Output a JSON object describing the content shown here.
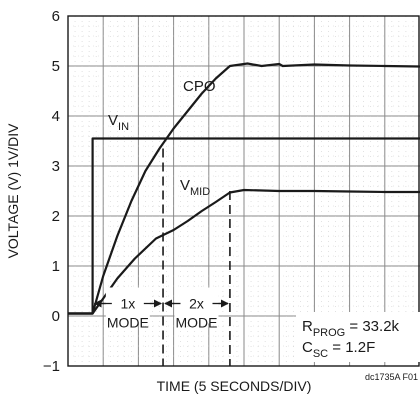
{
  "chart_data": {
    "type": "line",
    "title": "",
    "xlabel": "TIME (5 SECONDS/DIV)",
    "ylabel": "VOLTAGE (V) 1V/DIV",
    "xlim": [
      0,
      10
    ],
    "ylim": [
      -1,
      6
    ],
    "yticks": [
      "6",
      "5",
      "4",
      "3",
      "2",
      "1",
      "0",
      "−1"
    ],
    "grid": true,
    "series": [
      {
        "name": "CPO",
        "color": "#1a1a1a",
        "x": [
          0,
          0.3,
          0.7,
          1.0,
          1.4,
          1.8,
          2.2,
          2.6,
          3.0,
          3.4,
          3.8,
          4.2,
          4.6,
          5.1,
          5.5,
          6.0,
          6.1,
          7.0,
          8.0,
          9.0,
          10.0
        ],
        "y": [
          0.05,
          0.05,
          0.05,
          0.8,
          1.6,
          2.3,
          2.9,
          3.35,
          3.75,
          4.1,
          4.45,
          4.75,
          5.0,
          5.05,
          5.0,
          5.04,
          5.0,
          5.03,
          5.01,
          5.0,
          4.99
        ]
      },
      {
        "name": "V",
        "name_subscript": "IN",
        "color": "#1a1a1a",
        "x": [
          0,
          0.7,
          0.7,
          1.0,
          3.0,
          5.0,
          7.0,
          10.0
        ],
        "y": [
          0.05,
          0.05,
          3.55,
          3.55,
          3.55,
          3.55,
          3.55,
          3.55
        ]
      },
      {
        "name": "V",
        "name_subscript": "MID",
        "color": "#1a1a1a",
        "x": [
          0,
          0.7,
          1.0,
          1.4,
          1.9,
          2.5,
          3.0,
          3.4,
          3.8,
          4.2,
          4.6,
          5.0,
          6.0,
          7.0,
          8.0,
          9.0,
          10.0
        ],
        "y": [
          0.05,
          0.05,
          0.35,
          0.75,
          1.15,
          1.55,
          1.72,
          1.9,
          2.1,
          2.28,
          2.47,
          2.52,
          2.5,
          2.5,
          2.49,
          2.48,
          2.48
        ]
      }
    ],
    "markers": [
      {
        "x": 2.7,
        "label": "1x",
        "sublabel": "MODE",
        "span_from": 0.7
      },
      {
        "x": 4.6,
        "label": "2x",
        "sublabel": "MODE",
        "span_from": 2.7
      }
    ],
    "annotations": {
      "rprog": {
        "main": "R",
        "sub": "PROG",
        "rest": " = 33.2k"
      },
      "csc": {
        "main": "C",
        "sub": "SC",
        "rest": " = 1.2F"
      },
      "figure_id": "dc1735A F01"
    }
  }
}
